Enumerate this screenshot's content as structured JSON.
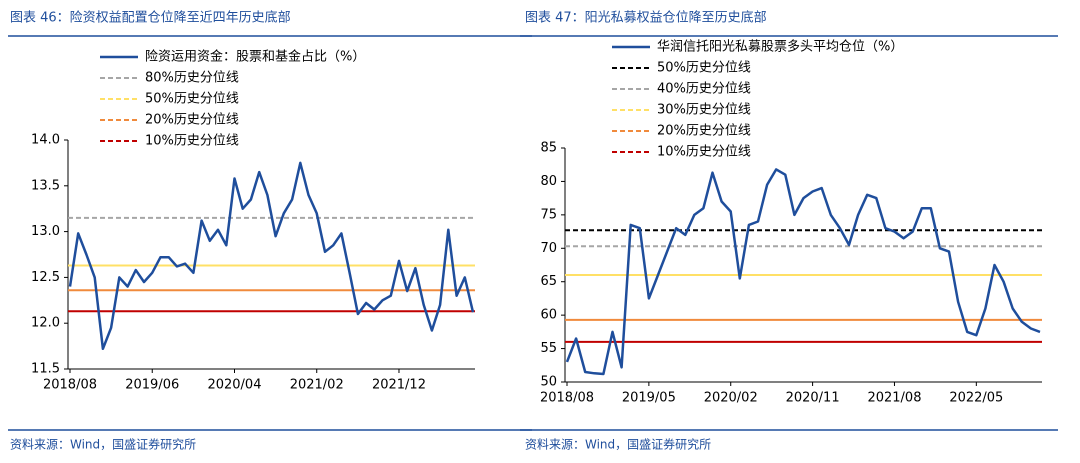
{
  "chart_data": [
    {
      "type": "line",
      "title": "图表 46：险资权益配置仓位降至近四年历史底部",
      "source": "资料来源：Wind，国盛证券研究所",
      "categories": [
        "2018/08",
        null,
        null,
        null,
        null,
        null,
        null,
        null,
        null,
        null,
        "2019/06",
        null,
        null,
        null,
        null,
        null,
        null,
        null,
        null,
        null,
        "2020/04",
        null,
        null,
        null,
        null,
        null,
        null,
        null,
        null,
        null,
        "2021/02",
        null,
        null,
        null,
        null,
        null,
        null,
        null,
        null,
        null,
        "2021/12",
        null,
        null,
        null,
        null,
        null,
        null,
        null,
        null,
        null
      ],
      "series": [
        {
          "name": "险资运用资金：股票和基金占比（%）",
          "color": "#1f4e9c",
          "values": [
            12.4,
            12.98,
            12.75,
            12.5,
            11.72,
            11.95,
            12.5,
            12.4,
            12.58,
            12.45,
            12.55,
            12.72,
            12.72,
            12.62,
            12.65,
            12.55,
            13.12,
            12.9,
            13.02,
            12.85,
            13.58,
            13.25,
            13.35,
            13.65,
            13.4,
            12.95,
            13.2,
            13.35,
            13.75,
            13.4,
            13.2,
            12.78,
            12.85,
            12.98,
            12.55,
            12.1,
            12.22,
            12.15,
            12.25,
            12.3,
            12.68,
            12.35,
            12.6,
            12.2,
            11.92,
            12.2,
            13.02,
            12.3,
            12.5,
            12.12
          ]
        }
      ],
      "reference_lines": [
        {
          "name": "80%历史分位线",
          "value": 13.15,
          "color": "#a6a6a6"
        },
        {
          "name": "50%历史分位线",
          "value": 12.63,
          "color": "#ffe066"
        },
        {
          "name": "20%历史分位线",
          "value": 12.36,
          "color": "#f08a3c"
        },
        {
          "name": "10%历史分位线",
          "value": 12.13,
          "color": "#c00000"
        }
      ],
      "ylim": [
        11.5,
        14.0
      ],
      "yticks": [
        {
          "value": 11.5,
          "label": "11.5"
        },
        {
          "value": 12,
          "label": "12.0"
        },
        {
          "value": 12.5,
          "label": "12.5"
        },
        {
          "value": 13,
          "label": "13.0"
        },
        {
          "value": 13.5,
          "label": "13.5"
        },
        {
          "value": 14,
          "label": "14.0"
        }
      ],
      "grid": false
    },
    {
      "type": "line",
      "title": "图表 47：阳光私募权益仓位降至历史底部",
      "source": "资料来源：Wind，国盛证券研究所",
      "categories": [
        "2018/08",
        null,
        null,
        null,
        null,
        null,
        null,
        null,
        null,
        "2019/05",
        null,
        null,
        null,
        null,
        null,
        null,
        null,
        null,
        "2020/02",
        null,
        null,
        null,
        null,
        null,
        null,
        null,
        null,
        "2020/11",
        null,
        null,
        null,
        null,
        null,
        null,
        null,
        null,
        "2021/08",
        null,
        null,
        null,
        null,
        null,
        null,
        null,
        null,
        "2022/05",
        null,
        null,
        null,
        null,
        null,
        null,
        null
      ],
      "series": [
        {
          "name": "华润信托阳光私募股票多头平均仓位（%）",
          "color": "#1f4e9c",
          "values": [
            53,
            56.5,
            51.5,
            51.3,
            51.2,
            57.5,
            52.2,
            73.5,
            73,
            62.5,
            66,
            69.5,
            73,
            72,
            75,
            76,
            81.3,
            77,
            75.5,
            65.5,
            73.5,
            74,
            79.5,
            81.8,
            81,
            75,
            77.5,
            78.5,
            79,
            75,
            73,
            70.5,
            75,
            78,
            77.5,
            73,
            72.5,
            71.5,
            72.5,
            76,
            76,
            70,
            69.5,
            62,
            57.5,
            57,
            61,
            67.5,
            65,
            61,
            59,
            58,
            57.5
          ]
        }
      ],
      "reference_lines": [
        {
          "name": "50%历史分位线",
          "value": 72.7,
          "color": "#000000"
        },
        {
          "name": "40%历史分位线",
          "value": 70.3,
          "color": "#a6a6a6"
        },
        {
          "name": "30%历史分位线",
          "value": 66,
          "color": "#ffe066"
        },
        {
          "name": "20%历史分位线",
          "value": 59.3,
          "color": "#f08a3c"
        },
        {
          "name": "10%历史分位线",
          "value": 56,
          "color": "#c00000"
        }
      ],
      "ylim": [
        50,
        85
      ],
      "yticks": [
        50,
        55,
        60,
        65,
        70,
        75,
        80,
        85
      ],
      "grid": false
    }
  ]
}
